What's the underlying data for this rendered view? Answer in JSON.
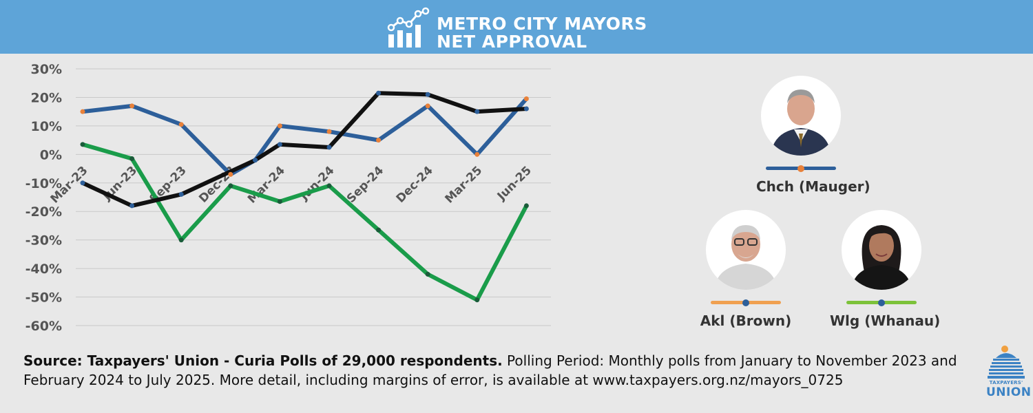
{
  "header": {
    "title_line1": "METRO CITY MAYORS",
    "title_line2": "NET APPROVAL",
    "icon": "bar-chart-trend-icon",
    "background": "#5ea4d8"
  },
  "chart_data": {
    "type": "line",
    "title": "METRO CITY MAYORS NET APPROVAL",
    "x": [
      "Mar-23",
      "Jun-23",
      "Sep-23",
      "Dec-23",
      "Mar-24",
      "Jun-24",
      "Sep-24",
      "Dec-24",
      "Mar-25",
      "Jun-25"
    ],
    "ylim": [
      -60,
      30
    ],
    "yticks": [
      "30%",
      "20%",
      "10%",
      "0%",
      "-10%",
      "-20%",
      "-30%",
      "-40%",
      "-50%",
      "-60%"
    ],
    "grid": true,
    "series": [
      {
        "name": "Chch (Mauger)",
        "color": "#2d5f9a",
        "points": [
          [
            0,
            15
          ],
          [
            2,
            17
          ],
          [
            4,
            10.5
          ],
          [
            6,
            -7
          ],
          [
            7,
            -2
          ],
          [
            8,
            10
          ],
          [
            10,
            8
          ],
          [
            12,
            5
          ],
          [
            14,
            17
          ],
          [
            16,
            0
          ],
          [
            18,
            19.5
          ]
        ],
        "marker_colors": [
          "#e8813a",
          "#e8813a",
          "#e8813a",
          "#e8813a",
          "#2d5f9a",
          "#e8813a",
          "#e8813a",
          "#e8813a",
          "#e8813a",
          "#e8813a",
          "#e8813a"
        ]
      },
      {
        "name": "Akl (Brown)",
        "color": "#111111",
        "points": [
          [
            0,
            -10
          ],
          [
            2,
            -18
          ],
          [
            4,
            -14
          ],
          [
            7,
            -2
          ],
          [
            8,
            3.5
          ],
          [
            10,
            2.5
          ],
          [
            12,
            21.5
          ],
          [
            14,
            21
          ],
          [
            16,
            15
          ],
          [
            18,
            16
          ]
        ],
        "marker_color": "#2d5f9a"
      },
      {
        "name": "Wlg (Whanau)",
        "color": "#1a9c4a",
        "points": [
          [
            0,
            3.5
          ],
          [
            2,
            -1.5
          ],
          [
            4,
            -30
          ],
          [
            6,
            -11
          ],
          [
            8,
            -16.5
          ],
          [
            10,
            -11
          ],
          [
            12,
            -26.5
          ],
          [
            14,
            -42
          ],
          [
            16,
            -51
          ],
          [
            18,
            -18
          ]
        ],
        "marker_color": "#1a5c3a"
      }
    ]
  },
  "legend": [
    {
      "label": "Chch (Mauger)",
      "line_color": "#2d5f9a",
      "dot_color": "#e8813a",
      "avatar": "mayor-mauger-portrait"
    },
    {
      "label": "Akl (Brown)",
      "line_color": "#f0a050",
      "dot_color": "#2d5f9a",
      "avatar": "mayor-brown-portrait"
    },
    {
      "label": "Wlg (Whanau)",
      "line_color": "#7cc23a",
      "dot_color": "#2d5f9a",
      "avatar": "mayor-whanau-portrait"
    }
  ],
  "footer": {
    "source_bold": "Source: Taxpayers' Union - Curia Polls of 29,000 respondents.",
    "source_rest": " Polling Period: Monthly polls from January to November 2023 and February 2024 to July 2025. More detail, including margins of error, is available at www.taxpayers.org.nz/mayors_0725"
  },
  "logo": {
    "line1": "TAXPAYERS'",
    "line2": "UNION",
    "icon": "parliament-building-icon"
  }
}
